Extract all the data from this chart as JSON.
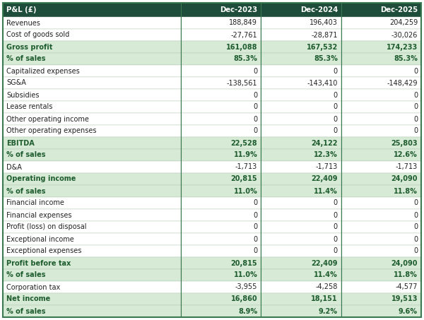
{
  "header_bg": "#1e4d3b",
  "header_text_color": "#ffffff",
  "highlight_bg": "#d6ead6",
  "highlight_text_color": "#1e5c2e",
  "normal_bg": "#ffffff",
  "normal_text_color": "#222222",
  "border_color": "#4a8c5c",
  "outer_border_color": "#3a7a50",
  "col0_header": "P&L (£)",
  "col1_header": "Dec-2023",
  "col2_header": "Dec-2024",
  "col3_header": "Dec-2025",
  "figw": 6.0,
  "figh": 4.53,
  "dpi": 100,
  "rows": [
    {
      "label": "Revenues",
      "v1": "188,849",
      "v2": "196,403",
      "v3": "204,259",
      "type": "normal"
    },
    {
      "label": "Cost of goods sold",
      "v1": "-27,761",
      "v2": "-28,871",
      "v3": "-30,026",
      "type": "normal"
    },
    {
      "label": "Gross profit",
      "v1": "161,088",
      "v2": "167,532",
      "v3": "174,233",
      "type": "highlight_bold"
    },
    {
      "label": "% of sales",
      "v1": "85.3%",
      "v2": "85.3%",
      "v3": "85.3%",
      "type": "highlight_pct"
    },
    {
      "label": "Capitalized expenses",
      "v1": "0",
      "v2": "0",
      "v3": "0",
      "type": "normal"
    },
    {
      "label": "SG&A",
      "v1": "-138,561",
      "v2": "-143,410",
      "v3": "-148,429",
      "type": "normal"
    },
    {
      "label": "Subsidies",
      "v1": "0",
      "v2": "0",
      "v3": "0",
      "type": "normal"
    },
    {
      "label": "Lease rentals",
      "v1": "0",
      "v2": "0",
      "v3": "0",
      "type": "normal"
    },
    {
      "label": "Other operating income",
      "v1": "0",
      "v2": "0",
      "v3": "0",
      "type": "normal"
    },
    {
      "label": "Other operating expenses",
      "v1": "0",
      "v2": "0",
      "v3": "0",
      "type": "normal"
    },
    {
      "label": "EBITDA",
      "v1": "22,528",
      "v2": "24,122",
      "v3": "25,803",
      "type": "highlight_bold"
    },
    {
      "label": "% of sales",
      "v1": "11.9%",
      "v2": "12.3%",
      "v3": "12.6%",
      "type": "highlight_pct"
    },
    {
      "label": "D&A",
      "v1": "-1,713",
      "v2": "-1,713",
      "v3": "-1,713",
      "type": "normal"
    },
    {
      "label": "Operating income",
      "v1": "20,815",
      "v2": "22,409",
      "v3": "24,090",
      "type": "highlight_bold"
    },
    {
      "label": "% of sales",
      "v1": "11.0%",
      "v2": "11.4%",
      "v3": "11.8%",
      "type": "highlight_pct"
    },
    {
      "label": "Financial income",
      "v1": "0",
      "v2": "0",
      "v3": "0",
      "type": "normal"
    },
    {
      "label": "Financial expenses",
      "v1": "0",
      "v2": "0",
      "v3": "0",
      "type": "normal"
    },
    {
      "label": "Profit (loss) on disposal",
      "v1": "0",
      "v2": "0",
      "v3": "0",
      "type": "normal"
    },
    {
      "label": "Exceptional income",
      "v1": "0",
      "v2": "0",
      "v3": "0",
      "type": "normal"
    },
    {
      "label": "Exceptional expenses",
      "v1": "0",
      "v2": "0",
      "v3": "0",
      "type": "normal"
    },
    {
      "label": "Profit before tax",
      "v1": "20,815",
      "v2": "22,409",
      "v3": "24,090",
      "type": "highlight_bold"
    },
    {
      "label": "% of sales",
      "v1": "11.0%",
      "v2": "11.4%",
      "v3": "11.8%",
      "type": "highlight_pct"
    },
    {
      "label": "Corporation tax",
      "v1": "-3,955",
      "v2": "-4,258",
      "v3": "-4,577",
      "type": "normal"
    },
    {
      "label": "Net income",
      "v1": "16,860",
      "v2": "18,151",
      "v3": "19,513",
      "type": "highlight_bold"
    },
    {
      "label": "% of sales",
      "v1": "8.9%",
      "v2": "9.2%",
      "v3": "9.6%",
      "type": "highlight_pct"
    }
  ]
}
